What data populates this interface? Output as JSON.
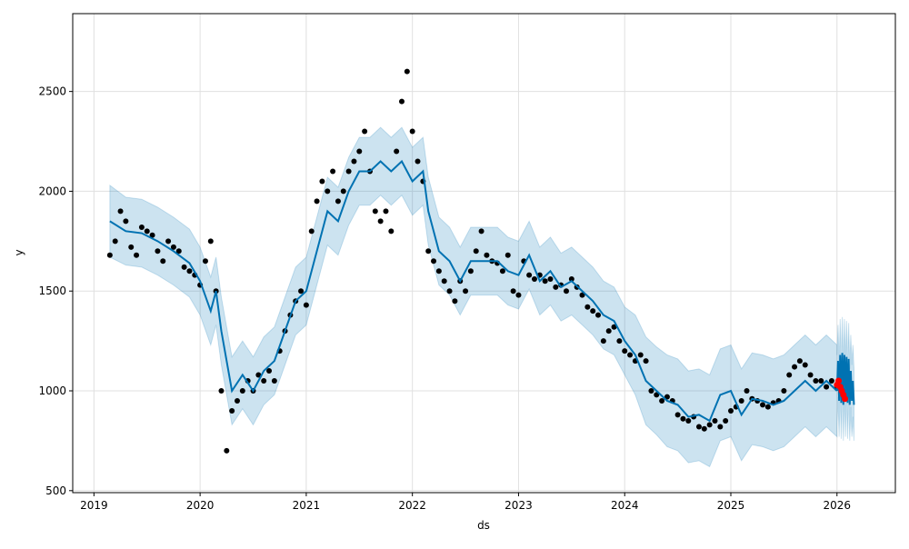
{
  "chart_data": {
    "type": "line",
    "title": "",
    "xlabel": "ds",
    "ylabel": "y",
    "xlim": [
      2018.8,
      2026.55
    ],
    "ylim": [
      490,
      2890
    ],
    "grid": true,
    "x_ticks": [
      "2019",
      "2020",
      "2021",
      "2022",
      "2023",
      "2024",
      "2025",
      "2026"
    ],
    "y_ticks": [
      "500",
      "1000",
      "1500",
      "2000",
      "2500"
    ],
    "colors": {
      "fit": "#0072B2",
      "band": "#0072B2",
      "actual": "#000000",
      "recent": "#ff0000"
    },
    "yhat": {
      "x": [
        2019.15,
        2019.3,
        2019.45,
        2019.6,
        2019.75,
        2019.9,
        2020.0,
        2020.1,
        2020.15,
        2020.2,
        2020.3,
        2020.4,
        2020.5,
        2020.6,
        2020.7,
        2020.8,
        2020.9,
        2021.0,
        2021.1,
        2021.2,
        2021.3,
        2021.4,
        2021.5,
        2021.6,
        2021.7,
        2021.8,
        2021.9,
        2022.0,
        2022.1,
        2022.15,
        2022.25,
        2022.35,
        2022.45,
        2022.55,
        2022.7,
        2022.8,
        2022.9,
        2023.0,
        2023.1,
        2023.2,
        2023.3,
        2023.4,
        2023.5,
        2023.6,
        2023.7,
        2023.8,
        2023.9,
        2024.0,
        2024.1,
        2024.2,
        2024.3,
        2024.4,
        2024.5,
        2024.6,
        2024.7,
        2024.8,
        2024.9,
        2025.0,
        2025.1,
        2025.2,
        2025.3,
        2025.4,
        2025.5,
        2025.6,
        2025.7,
        2025.8,
        2025.9,
        2026.0
      ],
      "y": [
        1850,
        1800,
        1790,
        1750,
        1700,
        1640,
        1550,
        1400,
        1500,
        1300,
        1000,
        1080,
        1000,
        1100,
        1150,
        1300,
        1450,
        1500,
        1700,
        1900,
        1850,
        2000,
        2100,
        2100,
        2150,
        2100,
        2150,
        2050,
        2100,
        1900,
        1700,
        1650,
        1550,
        1650,
        1650,
        1650,
        1600,
        1580,
        1680,
        1550,
        1600,
        1520,
        1550,
        1500,
        1450,
        1380,
        1350,
        1250,
        1180,
        1050,
        1000,
        950,
        930,
        870,
        880,
        850,
        980,
        1000,
        880,
        960,
        950,
        930,
        950,
        1000,
        1050,
        1000,
        1050,
        1000
      ],
      "band_halfwidth": [
        180,
        170,
        170,
        170,
        170,
        170,
        170,
        170,
        170,
        170,
        170,
        170,
        170,
        170,
        170,
        170,
        170,
        170,
        170,
        170,
        170,
        170,
        170,
        170,
        170,
        170,
        170,
        170,
        170,
        170,
        170,
        170,
        170,
        170,
        170,
        170,
        170,
        170,
        170,
        170,
        170,
        170,
        170,
        170,
        170,
        170,
        170,
        170,
        200,
        220,
        220,
        230,
        230,
        230,
        230,
        230,
        230,
        230,
        230,
        230,
        230,
        230,
        230,
        230,
        230,
        230,
        230,
        230
      ]
    },
    "forecast": {
      "x_start": 2026.0,
      "x_step": 0.01,
      "y": [
        1000,
        1150,
        950,
        1180,
        940,
        1190,
        930,
        1180,
        950,
        1170,
        940,
        1160,
        930,
        1100,
        950,
        1050,
        930
      ],
      "band_halfwidth": 180
    },
    "actual": {
      "x_start": 2019.15,
      "x_step": 0.05,
      "y": [
        1680,
        1750,
        1900,
        1850,
        1720,
        1680,
        1820,
        1800,
        1780,
        1700,
        1650,
        1750,
        1720,
        1700,
        1620,
        1600,
        1580,
        1530,
        1650,
        1750,
        1500,
        1000,
        700,
        900,
        950,
        1000,
        1050,
        1000,
        1080,
        1050,
        1100,
        1050,
        1200,
        1300,
        1380,
        1450,
        1500,
        1430,
        1800,
        1950,
        2050,
        2000,
        2100,
        1950,
        2000,
        2100,
        2150,
        2200,
        2300,
        2100,
        1900,
        1850,
        1900,
        1800,
        2200,
        2450,
        2600,
        2300,
        2150,
        2050,
        1700,
        1650,
        1600,
        1550,
        1500,
        1450,
        1550,
        1500,
        1600,
        1700,
        1800,
        1680,
        1650,
        1640,
        1600,
        1680,
        1500,
        1480,
        1650,
        1580,
        1560,
        1580,
        1550,
        1560,
        1520,
        1530,
        1500,
        1560,
        1520,
        1480,
        1420,
        1400,
        1380,
        1250,
        1300,
        1320,
        1250,
        1200,
        1180,
        1150,
        1180,
        1150,
        1000,
        980,
        950,
        970,
        950,
        880,
        860,
        850,
        870,
        820,
        810,
        830,
        850,
        820,
        850,
        900,
        920,
        950,
        1000,
        960,
        950,
        930,
        920,
        940,
        950,
        1000,
        1080,
        1120,
        1150,
        1130,
        1080,
        1050,
        1050,
        1020,
        1050,
        1020
      ]
    },
    "recent_actual": {
      "x": [
        2026.0,
        2026.015,
        2026.03,
        2026.045,
        2026.06,
        2026.075
      ],
      "y": [
        1030,
        1050,
        1020,
        1000,
        980,
        960
      ]
    }
  }
}
